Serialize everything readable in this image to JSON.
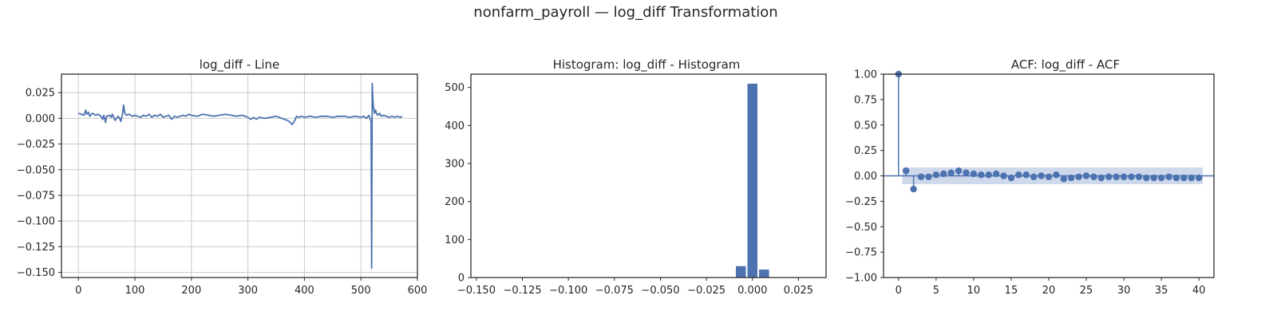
{
  "figure": {
    "title": "nonfarm_payroll — log_diff Transformation",
    "colors": {
      "series": "#4c72b0",
      "band": "#c5d1e8",
      "grid": "#cccccc",
      "frame": "#262626",
      "text": "#262626"
    }
  },
  "chart_data": [
    {
      "type": "line",
      "title": "log_diff - Line",
      "xlabel": "",
      "ylabel": "",
      "xlim": [
        -30,
        600
      ],
      "ylim": [
        -0.155,
        0.043
      ],
      "grid": true,
      "xticks": [
        0,
        100,
        200,
        300,
        400,
        500,
        600
      ],
      "xtick_labels": [
        "0",
        "100",
        "200",
        "300",
        "400",
        "500",
        "600"
      ],
      "yticks": [
        0.025,
        0.0,
        -0.025,
        -0.05,
        -0.075,
        -0.1,
        -0.125,
        -0.15
      ],
      "ytick_labels": [
        "0.025",
        "0.000",
        "−0.025",
        "−0.050",
        "−0.075",
        "−0.100",
        "−0.125",
        "−0.150"
      ],
      "x": [
        0,
        5,
        10,
        13,
        15,
        18,
        20,
        25,
        30,
        35,
        40,
        43,
        45,
        48,
        50,
        55,
        58,
        60,
        65,
        70,
        73,
        75,
        78,
        80,
        82,
        85,
        90,
        95,
        100,
        105,
        110,
        115,
        120,
        125,
        130,
        135,
        140,
        145,
        150,
        155,
        160,
        165,
        170,
        175,
        180,
        185,
        190,
        195,
        200,
        210,
        220,
        230,
        240,
        250,
        260,
        270,
        280,
        290,
        300,
        305,
        310,
        315,
        320,
        330,
        340,
        350,
        360,
        365,
        370,
        375,
        378,
        380,
        383,
        386,
        390,
        395,
        400,
        410,
        420,
        430,
        440,
        450,
        460,
        470,
        480,
        490,
        500,
        505,
        510,
        514,
        516,
        518,
        519,
        520,
        521,
        522,
        524,
        526,
        528,
        530,
        533,
        536,
        540,
        545,
        550,
        555,
        560,
        565,
        570,
        573
      ],
      "y": [
        0.005,
        0.004,
        0.003,
        0.008,
        0.004,
        0.006,
        0.002,
        0.005,
        0.003,
        0.004,
        0.002,
        -0.001,
        0.003,
        -0.004,
        0.002,
        0.003,
        0.001,
        0.004,
        -0.002,
        0.002,
        0.0,
        -0.003,
        0.004,
        0.013,
        0.005,
        0.003,
        0.004,
        0.002,
        0.003,
        0.002,
        0.001,
        0.003,
        0.002,
        0.004,
        0.001,
        0.003,
        0.002,
        0.004,
        0.001,
        0.002,
        0.003,
        -0.001,
        0.002,
        0.001,
        0.002,
        0.003,
        0.002,
        0.004,
        0.003,
        0.002,
        0.004,
        0.003,
        0.002,
        0.003,
        0.004,
        0.003,
        0.002,
        0.003,
        0.001,
        -0.001,
        0.001,
        -0.001,
        0.001,
        0.0,
        0.001,
        0.002,
        0.0,
        -0.001,
        -0.002,
        -0.004,
        -0.006,
        -0.005,
        -0.002,
        0.002,
        0.001,
        0.002,
        0.001,
        0.002,
        0.001,
        0.002,
        0.002,
        0.001,
        0.002,
        0.002,
        0.001,
        0.002,
        0.001,
        0.002,
        0.0,
        0.003,
        0.0,
        -0.003,
        -0.146,
        0.034,
        0.02,
        0.012,
        0.005,
        0.008,
        0.004,
        0.003,
        0.005,
        0.002,
        0.003,
        0.002,
        0.001,
        0.002,
        0.001,
        0.002,
        0.001,
        0.002
      ]
    },
    {
      "type": "bar",
      "title": "Histogram: log_diff - Histogram",
      "xlabel": "",
      "ylabel": "",
      "xlim": [
        -0.153,
        0.04
      ],
      "ylim": [
        0,
        535
      ],
      "grid": false,
      "xticks": [
        -0.15,
        -0.125,
        -0.1,
        -0.075,
        -0.05,
        -0.025,
        0.0,
        0.025
      ],
      "xtick_labels": [
        "−0.150",
        "−0.125",
        "−0.100",
        "−0.075",
        "−0.050",
        "−0.025",
        "0.000",
        "0.025"
      ],
      "yticks": [
        0,
        100,
        200,
        300,
        400,
        500
      ],
      "ytick_labels": [
        "0",
        "100",
        "200",
        "300",
        "400",
        "500"
      ],
      "bin_width": 0.0063,
      "bins": [
        {
          "x": -0.0063,
          "count": 30
        },
        {
          "x": 0.0,
          "count": 510
        },
        {
          "x": 0.0063,
          "count": 21
        }
      ]
    },
    {
      "type": "scatter",
      "title": "ACF: log_diff - ACF",
      "xlabel": "",
      "ylabel": "",
      "xlim": [
        -2,
        42
      ],
      "ylim": [
        -1.0,
        1.0
      ],
      "grid": false,
      "xticks": [
        0,
        5,
        10,
        15,
        20,
        25,
        30,
        35,
        40
      ],
      "xtick_labels": [
        "0",
        "5",
        "10",
        "15",
        "20",
        "25",
        "30",
        "35",
        "40"
      ],
      "yticks": [
        1.0,
        0.75,
        0.5,
        0.25,
        0.0,
        -0.25,
        -0.5,
        -0.75,
        -1.0
      ],
      "ytick_labels": [
        "1.00",
        "0.75",
        "0.50",
        "0.25",
        "0.00",
        "−0.25",
        "−0.50",
        "−0.75",
        "−1.00"
      ],
      "confidence_band": 0.082,
      "lags": [
        0,
        1,
        2,
        3,
        4,
        5,
        6,
        7,
        8,
        9,
        10,
        11,
        12,
        13,
        14,
        15,
        16,
        17,
        18,
        19,
        20,
        21,
        22,
        23,
        24,
        25,
        26,
        27,
        28,
        29,
        30,
        31,
        32,
        33,
        34,
        35,
        36,
        37,
        38,
        39,
        40
      ],
      "acf": [
        1.0,
        0.05,
        -0.13,
        -0.01,
        -0.01,
        0.01,
        0.02,
        0.03,
        0.05,
        0.03,
        0.02,
        0.01,
        0.01,
        0.02,
        0.0,
        -0.02,
        0.01,
        0.01,
        -0.01,
        0.0,
        -0.01,
        0.01,
        -0.03,
        -0.02,
        -0.01,
        0.0,
        -0.01,
        -0.02,
        -0.01,
        -0.01,
        -0.01,
        -0.01,
        -0.01,
        -0.02,
        -0.02,
        -0.02,
        -0.01,
        -0.02,
        -0.02,
        -0.02,
        -0.02
      ]
    }
  ]
}
